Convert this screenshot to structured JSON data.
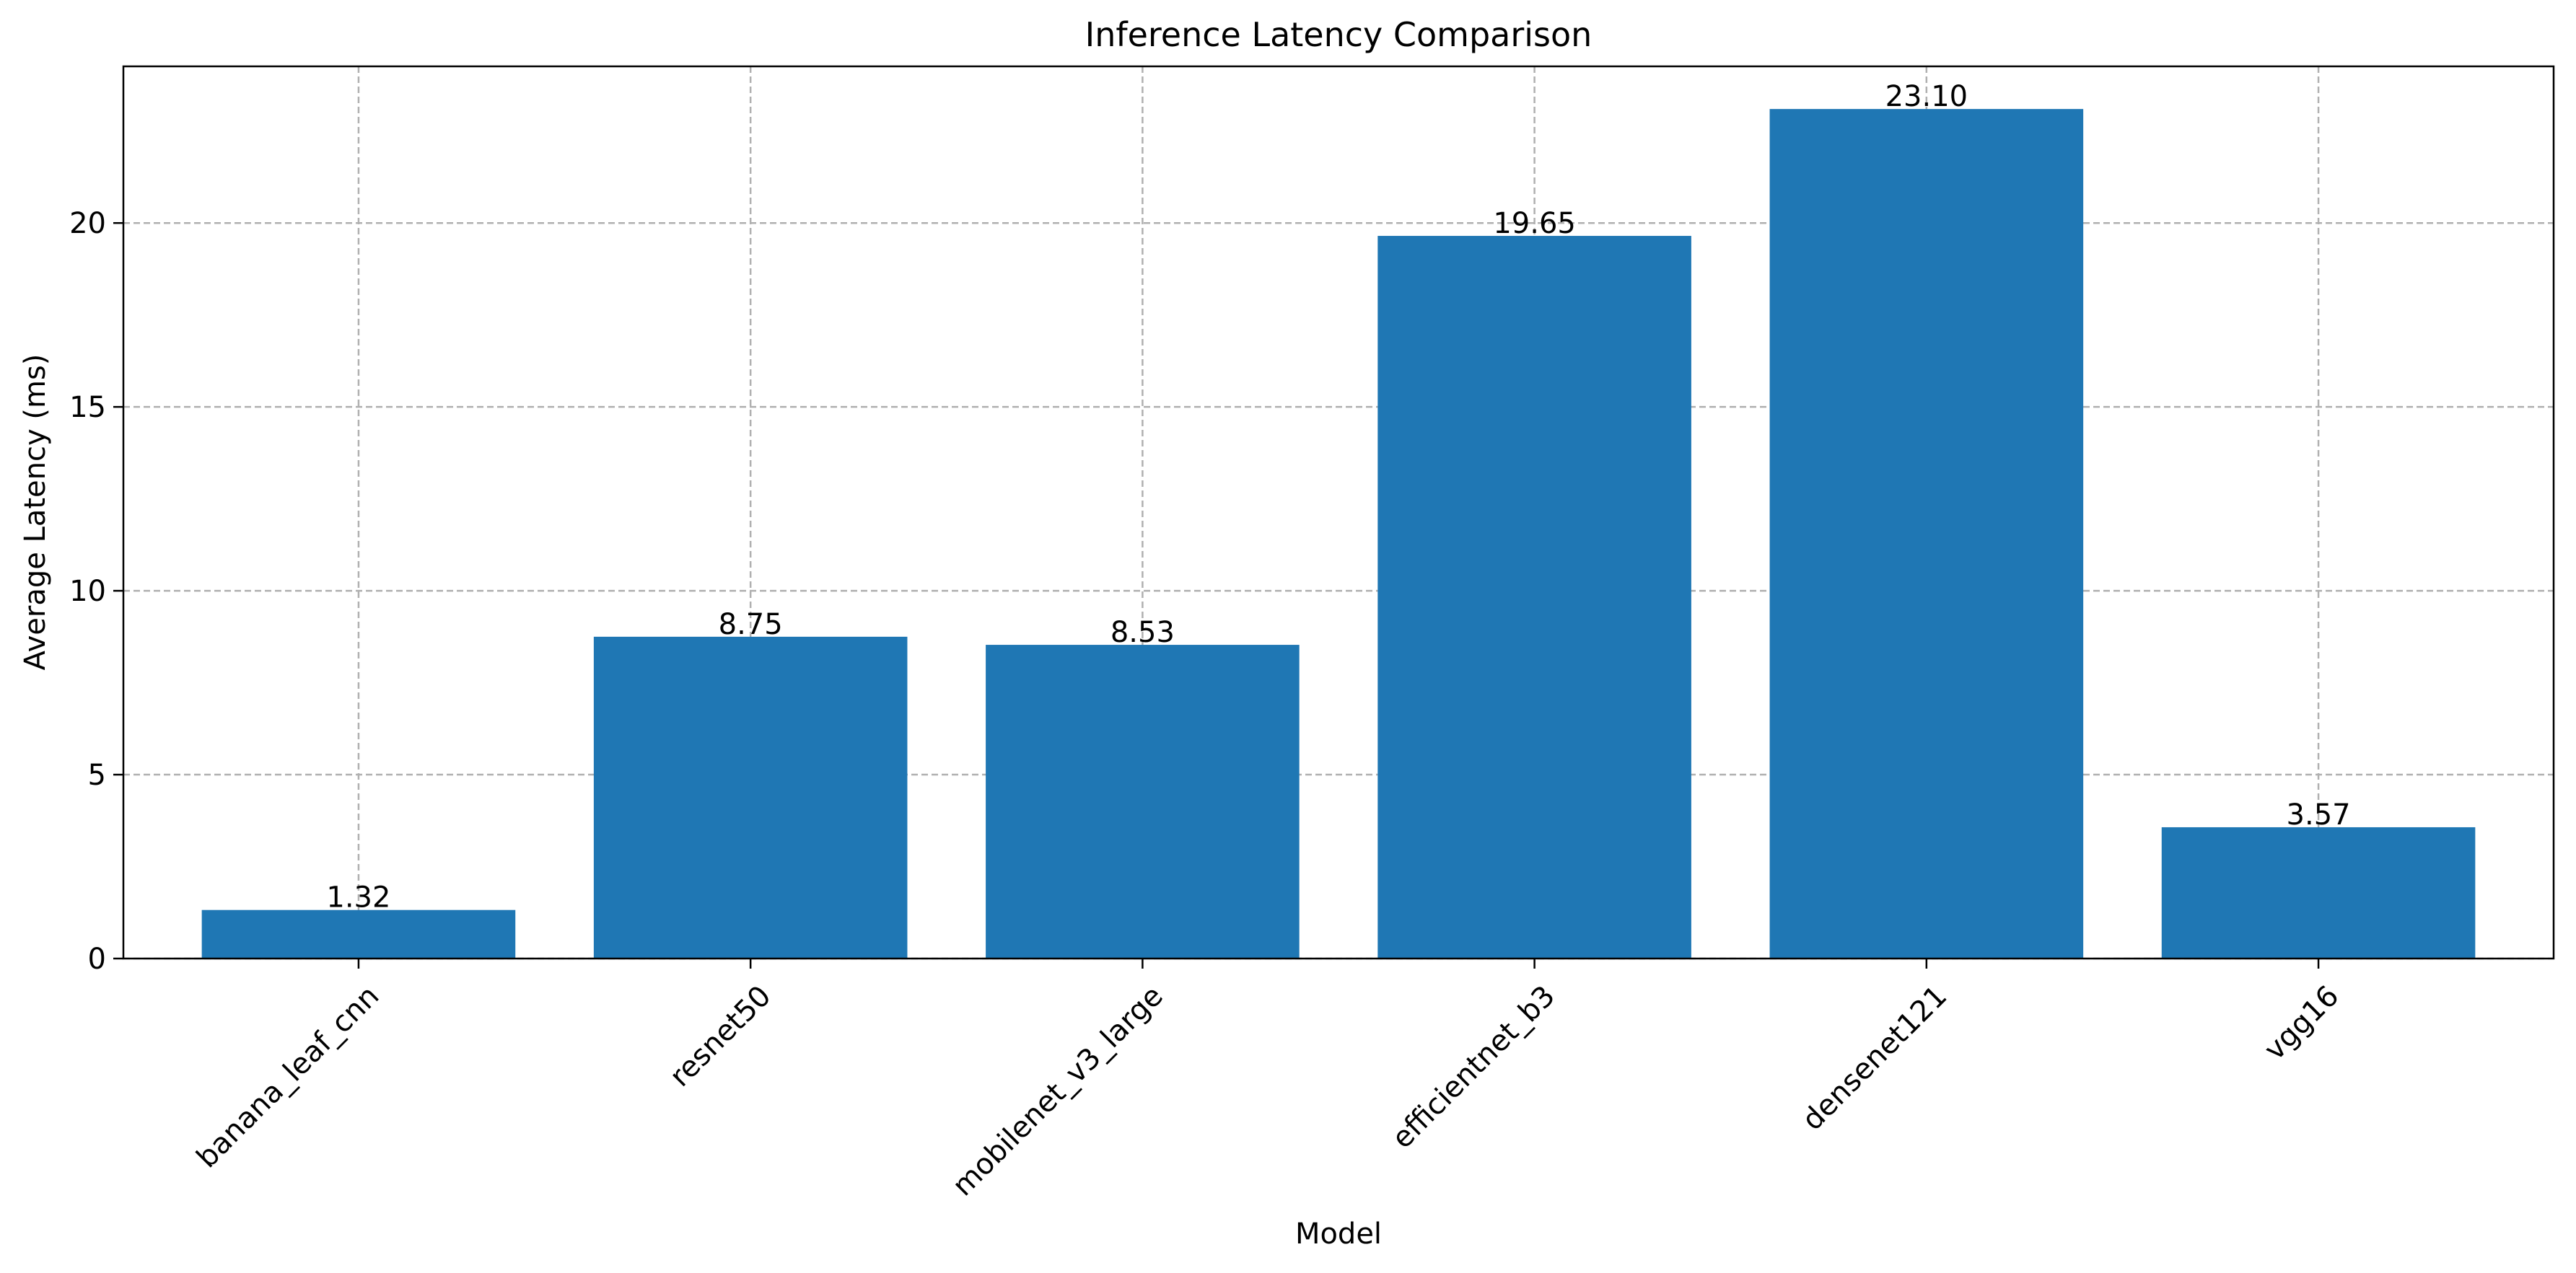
{
  "chart_data": {
    "type": "bar",
    "title": "Inference Latency Comparison",
    "xlabel": "Model",
    "ylabel": "Average Latency (ms)",
    "categories": [
      "banana_leaf_cnn",
      "resnet50",
      "mobilenet_v3_large",
      "efficientnet_b3",
      "densenet121",
      "vgg16"
    ],
    "values": [
      1.32,
      8.75,
      8.53,
      19.65,
      23.1,
      3.57
    ],
    "value_labels": [
      "1.32",
      "8.75",
      "8.53",
      "19.65",
      "23.10",
      "3.57"
    ],
    "ylim": [
      0,
      24.26
    ],
    "yticks": [
      0,
      5,
      10,
      15,
      20
    ],
    "grid": true,
    "bar_color": "#1f77b4"
  }
}
